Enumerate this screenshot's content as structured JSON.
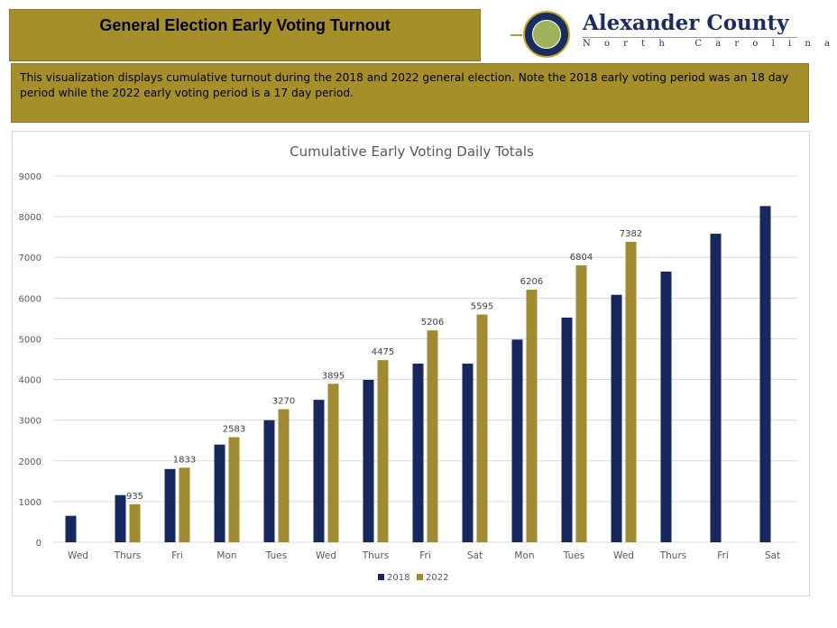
{
  "header": {
    "title": "General Election Early Voting Turnout",
    "logo": {
      "name": "Alexander County",
      "subtitle": "North Carolina",
      "seal_icon": "county-seal-icon"
    }
  },
  "description": "This visualization displays cumulative turnout during the 2018 and 2022 general election. Note the 2018 early voting period was an 18 day period while the 2022 early voting period is a 17 day period.",
  "colors": {
    "brand_gold": "#a58f2b",
    "series_2018": "#16285e",
    "series_2022": "#a08b33",
    "gridline": "#d9d9d9",
    "axis_text": "#595959"
  },
  "chart_data": {
    "type": "bar",
    "title": "Cumulative Early Voting Daily Totals",
    "xlabel": "",
    "ylabel": "",
    "ylim": [
      0,
      9000
    ],
    "yticks": [
      0,
      1000,
      2000,
      3000,
      4000,
      5000,
      6000,
      7000,
      8000,
      9000
    ],
    "grid": true,
    "legend_position": "bottom",
    "categories": [
      "Wed",
      "Thurs",
      "Fri",
      "Mon",
      "Tues",
      "Wed",
      "Thurs",
      "Fri",
      "Sat",
      "Mon",
      "Tues",
      "Wed",
      "Thurs",
      "Fri",
      "Sat"
    ],
    "series": [
      {
        "name": "2018",
        "values": [
          650,
          1160,
          1800,
          2400,
          3000,
          3500,
          3990,
          4390,
          4390,
          4980,
          5520,
          6080,
          6650,
          7580,
          8260
        ],
        "data_labels": false
      },
      {
        "name": "2022",
        "values": [
          null,
          935,
          1833,
          2583,
          3270,
          3895,
          4475,
          5206,
          5595,
          6206,
          6804,
          7382,
          null,
          null,
          null
        ],
        "data_labels": true
      }
    ]
  }
}
